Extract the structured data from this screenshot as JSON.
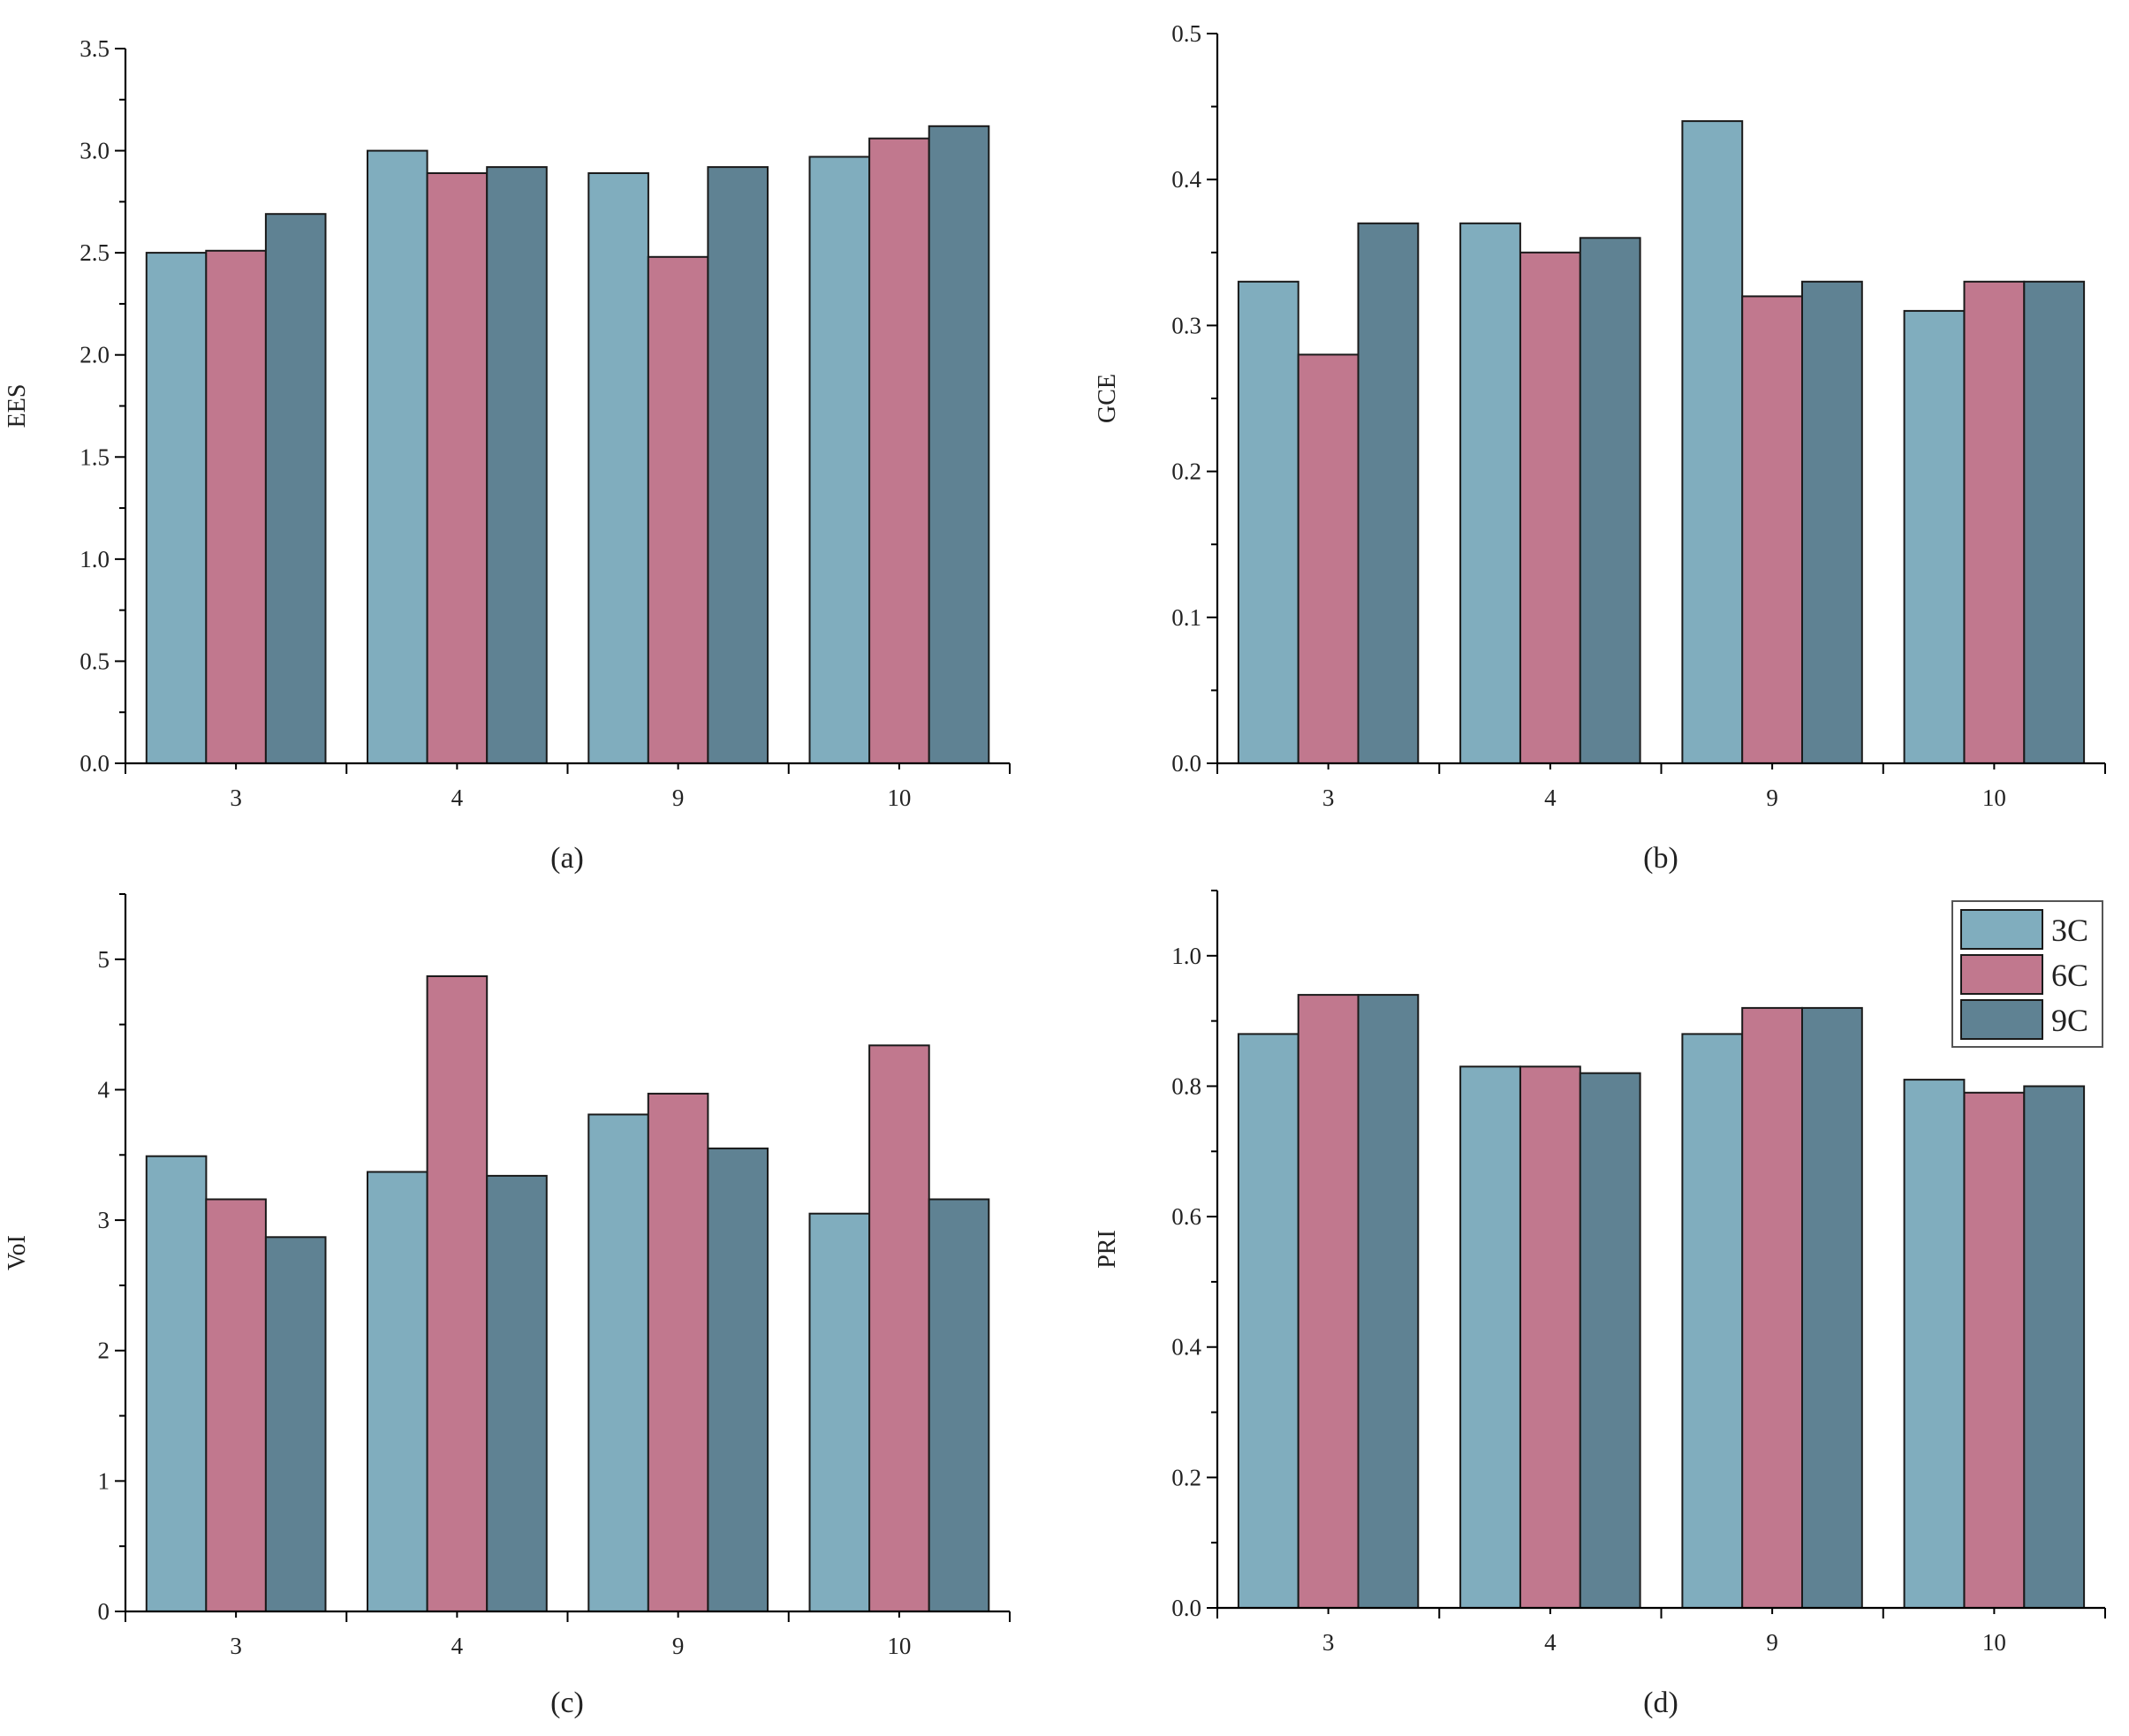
{
  "chart_data": [
    {
      "type": "bar",
      "title": "",
      "caption": "(a)",
      "xlabel": "",
      "ylabel": "EES",
      "categories": [
        "3",
        "4",
        "9",
        "10"
      ],
      "ylim": [
        0,
        3.5
      ],
      "yticks": [
        0.0,
        0.5,
        1.0,
        1.5,
        2.0,
        2.5,
        3.0,
        3.5
      ],
      "ytick_labels": [
        "0.0",
        "0.5",
        "1.0",
        "1.5",
        "2.0",
        "2.5",
        "3.0",
        "3.5"
      ],
      "series": [
        {
          "name": "3C",
          "values": [
            2.5,
            3.0,
            2.89,
            2.97
          ]
        },
        {
          "name": "6C",
          "values": [
            2.51,
            2.89,
            2.48,
            3.06
          ]
        },
        {
          "name": "9C",
          "values": [
            2.69,
            2.92,
            2.92,
            3.12
          ]
        }
      ]
    },
    {
      "type": "bar",
      "title": "",
      "caption": "(b)",
      "xlabel": "",
      "ylabel": "GCE",
      "categories": [
        "3",
        "4",
        "9",
        "10"
      ],
      "ylim": [
        0,
        0.5
      ],
      "yticks": [
        0.0,
        0.1,
        0.2,
        0.3,
        0.4,
        0.5
      ],
      "ytick_labels": [
        "0.0",
        "0.1",
        "0.2",
        "0.3",
        "0.4",
        "0.5"
      ],
      "series": [
        {
          "name": "3C",
          "values": [
            0.33,
            0.37,
            0.44,
            0.31
          ]
        },
        {
          "name": "6C",
          "values": [
            0.28,
            0.35,
            0.32,
            0.33
          ]
        },
        {
          "name": "9C",
          "values": [
            0.37,
            0.36,
            0.33,
            0.33
          ]
        }
      ]
    },
    {
      "type": "bar",
      "title": "",
      "caption": "(c)",
      "xlabel": "",
      "ylabel": "VoI",
      "categories": [
        "3",
        "4",
        "9",
        "10"
      ],
      "ylim": [
        0,
        5.5
      ],
      "yticks": [
        0,
        1,
        2,
        3,
        4,
        5
      ],
      "ytick_labels": [
        "0",
        "1",
        "2",
        "3",
        "4",
        "5"
      ],
      "series": [
        {
          "name": "3C",
          "values": [
            3.49,
            3.37,
            3.81,
            3.05
          ]
        },
        {
          "name": "6C",
          "values": [
            3.16,
            4.87,
            3.97,
            4.34
          ]
        },
        {
          "name": "9C",
          "values": [
            2.87,
            3.34,
            3.55,
            3.16
          ]
        }
      ]
    },
    {
      "type": "bar",
      "title": "",
      "caption": "(d)",
      "xlabel": "",
      "ylabel": "PRI",
      "categories": [
        "3",
        "4",
        "9",
        "10"
      ],
      "ylim": [
        0,
        1.1
      ],
      "yticks": [
        0.0,
        0.2,
        0.4,
        0.6,
        0.8,
        1.0
      ],
      "ytick_labels": [
        "0.0",
        "0.2",
        "0.4",
        "0.6",
        "0.8",
        "1.0"
      ],
      "legend": "top-right",
      "series": [
        {
          "name": "3C",
          "values": [
            0.88,
            0.83,
            0.88,
            0.81
          ]
        },
        {
          "name": "6C",
          "values": [
            0.94,
            0.83,
            0.92,
            0.79
          ]
        },
        {
          "name": "9C",
          "values": [
            0.94,
            0.82,
            0.92,
            0.8
          ]
        }
      ]
    }
  ],
  "legend": {
    "items": [
      {
        "label": "3C",
        "color": "#80adbe"
      },
      {
        "label": "6C",
        "color": "#c1788e"
      },
      {
        "label": "9C",
        "color": "#5f8293"
      }
    ]
  },
  "colors": {
    "3C": "#80adbe",
    "6C": "#c1788e",
    "9C": "#5f8293"
  }
}
